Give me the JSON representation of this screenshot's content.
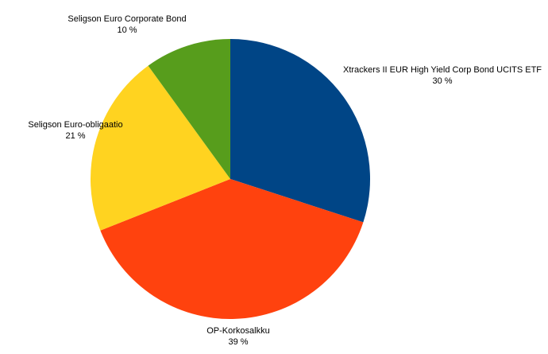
{
  "chart_data": {
    "type": "pie",
    "categories": [
      "Xtrackers II EUR High Yield Corp Bond UCITS ETF",
      "OP-Korkosalkku",
      "Seligson Euro-obligaatio",
      "Seligson Euro Corporate Bond"
    ],
    "values": [
      30,
      39,
      21,
      10
    ],
    "value_labels": [
      "30 %",
      "39 %",
      "21 %",
      "10 %"
    ],
    "colors": [
      "#004586",
      "#ff420e",
      "#ffd320",
      "#579d1c"
    ]
  }
}
